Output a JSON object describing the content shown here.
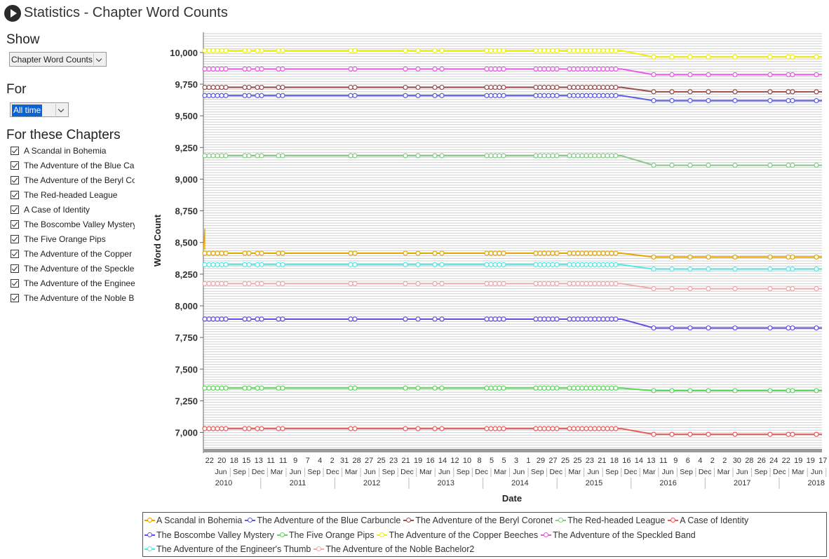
{
  "window": {
    "title": "Statistics - Chapter Word Counts",
    "icon": "scrivener-app-icon"
  },
  "sidebar": {
    "show_label": "Show",
    "show_value": "Chapter Word Counts",
    "for_label": "For",
    "for_value": "All time",
    "chapters_label": "For these Chapters",
    "chapters": [
      "A Scandal in Bohemia",
      "The Adventure of the Blue Car",
      "The Adventure of the Beryl Co",
      "The Red-headed League",
      "A Case of Identity",
      "The Boscombe Valley Mystery",
      "The Five Orange Pips",
      "The Adventure of the Copper I",
      "The Adventure of the Speckled",
      "The Adventure of the Engineer",
      "The Adventure of the Noble Ba"
    ]
  },
  "chart_data": {
    "type": "line",
    "xlabel": "Date",
    "ylabel": "Word Count",
    "ylim": [
      6870,
      10160
    ],
    "yticks": [
      7000,
      7250,
      7500,
      7750,
      8000,
      8250,
      8500,
      8750,
      9000,
      9250,
      9500,
      9750,
      10000
    ],
    "ytick_labels": [
      "7,000",
      "7,250",
      "7,500",
      "7,750",
      "8,000",
      "8,250",
      "8,500",
      "8,750",
      "9,000",
      "9,250",
      "9,500",
      "9,750",
      "10,000"
    ],
    "x_day_labels": [
      "22",
      "20",
      "18",
      "15",
      "13",
      "11",
      "11",
      "9",
      "7",
      "4",
      "2",
      "31",
      "28",
      "27",
      "25",
      "23",
      "21",
      "19",
      "16",
      "14",
      "12",
      "10",
      "8",
      "5",
      "5",
      "3",
      "1",
      "29",
      "27",
      "25",
      "25",
      "23",
      "21",
      "18",
      "16",
      "14",
      "13",
      "11",
      "9",
      "6",
      "4",
      "2",
      "2",
      "30",
      "28",
      "26",
      "24",
      "22",
      "19",
      "19",
      "17"
    ],
    "x_month_labels": [
      "Jun",
      "Sep",
      "Dec",
      "Mar",
      "Jun",
      "Sep",
      "Dec",
      "Mar",
      "Jun",
      "Sep",
      "Dec",
      "Mar",
      "Jun",
      "Sep",
      "Dec",
      "Mar",
      "Jun",
      "Sep",
      "Dec",
      "Mar",
      "Jun",
      "Sep",
      "Dec",
      "Mar",
      "Jun",
      "Sep",
      "Dec",
      "Mar",
      "Jun",
      "Sep",
      "Dec",
      "Mar",
      "Jun"
    ],
    "x_year_labels": [
      "2010",
      "2011",
      "2012",
      "2013",
      "2014",
      "2015",
      "2016",
      "2017",
      "2018"
    ],
    "grid": true,
    "legend_position": "bottom",
    "series": [
      {
        "name": "A Scandal in Bohemia",
        "color": "#e6a400",
        "before": 8415,
        "after": 8385
      },
      {
        "name": "The Adventure of the Blue Carbuncle",
        "color": "#5a5ae6",
        "before": 9660,
        "after": 9620
      },
      {
        "name": "The Adventure of the Beryl Coronet",
        "color": "#9c4a4a",
        "before": 9725,
        "after": 9690
      },
      {
        "name": "The Red-headed League",
        "color": "#88c888",
        "before": 9185,
        "after": 9110
      },
      {
        "name": "A Case of Identity",
        "color": "#e85a5a",
        "before": 7030,
        "after": 6985
      },
      {
        "name": "The Boscombe Valley Mystery",
        "color": "#6a4ae0",
        "before": 7895,
        "after": 7825
      },
      {
        "name": "The Five Orange Pips",
        "color": "#5ad85a",
        "before": 7350,
        "after": 7330
      },
      {
        "name": "The Adventure of the Copper Beeches",
        "color": "#f0f000",
        "before": 10015,
        "after": 9965
      },
      {
        "name": "The Adventure of the Speckled Band",
        "color": "#e65ae6",
        "before": 9870,
        "after": 9825
      },
      {
        "name": "The Adventure of the Engineer's Thumb",
        "color": "#55e6e6",
        "before": 8325,
        "after": 8290
      },
      {
        "name": "The Adventure of the Noble Bachelor2",
        "color": "#f0a8a8",
        "before": 8175,
        "after": 8135
      }
    ]
  }
}
